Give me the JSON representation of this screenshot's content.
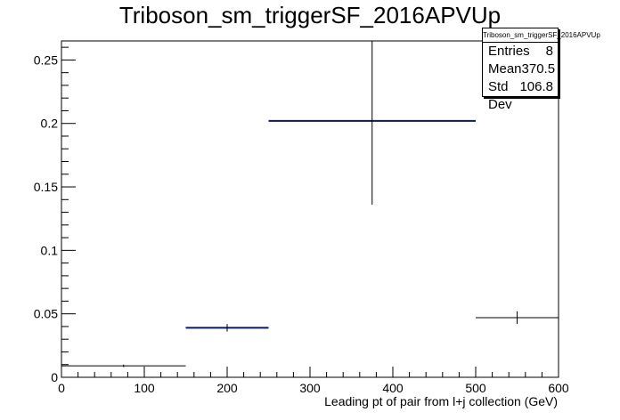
{
  "chart_data": {
    "type": "histogram",
    "title": "Triboson_sm_triggerSF_2016APVUp",
    "xlabel": "Leading pt of pair from l+j collection (GeV)",
    "ylabel": "",
    "xlim": [
      0,
      600
    ],
    "ylim": [
      0,
      0.265
    ],
    "x_ticks": [
      0,
      100,
      200,
      300,
      400,
      500,
      600
    ],
    "y_ticks": [
      0,
      0.05,
      0.1,
      0.15,
      0.2,
      0.25
    ],
    "x_tick_labels": [
      "0",
      "100",
      "200",
      "300",
      "400",
      "500",
      "600"
    ],
    "y_tick_labels": [
      "0",
      "0.05",
      "0.1",
      "0.15",
      "0.2",
      "0.25"
    ],
    "bins": [
      {
        "low": 0,
        "high": 150,
        "value": 0.009,
        "err": 0.001,
        "color": "#000000"
      },
      {
        "low": 150,
        "high": 250,
        "value": 0.039,
        "err": 0.003,
        "color": "#0b1a5c"
      },
      {
        "low": 250,
        "high": 500,
        "value": 0.202,
        "err": 0.066,
        "color": "#0b1a5c"
      },
      {
        "low": 500,
        "high": 600,
        "value": 0.047,
        "err": 0.005,
        "color": "#000000"
      }
    ],
    "stats": {
      "name": "Triboson_sm_triggerSF_2016APVUp",
      "entries_label": "Entries",
      "entries": "8",
      "mean_label": "Mean",
      "mean": "370.5",
      "stddev_label": "Std Dev",
      "stddev": "106.8"
    }
  }
}
